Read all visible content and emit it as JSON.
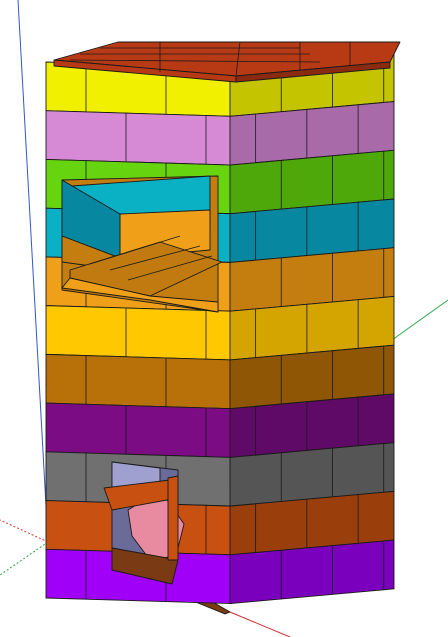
{
  "viewport": {
    "background": "#ffffff"
  },
  "axes": {
    "red_axis_color": "#d43030",
    "green_axis_color": "#2fa84f",
    "blue_axis_color": "#3355cc"
  },
  "model": {
    "cap_color": "#b83a14",
    "courses_top_to_bottom": [
      {
        "name": "yellow",
        "front": "#f0f000",
        "side": "#c4c400"
      },
      {
        "name": "lavender",
        "front": "#d68ad6",
        "side": "#a86aa8"
      },
      {
        "name": "lime",
        "front": "#66d40e",
        "side": "#4fa80a"
      },
      {
        "name": "teal",
        "front": "#0ab0c4",
        "side": "#0888a0"
      },
      {
        "name": "orange",
        "front": "#f0a018",
        "side": "#c47e10"
      },
      {
        "name": "gold",
        "front": "#ffc800",
        "side": "#d4a400"
      },
      {
        "name": "brown",
        "front": "#b87008",
        "side": "#8f5606"
      },
      {
        "name": "purple",
        "front": "#7c0c84",
        "side": "#5e0a66"
      },
      {
        "name": "gray",
        "front": "#707070",
        "side": "#555555"
      },
      {
        "name": "rust",
        "front": "#c85010",
        "side": "#9a3e0c"
      },
      {
        "name": "violet",
        "front": "#a000f8",
        "side": "#7a00be"
      }
    ],
    "firebox_color": "#e88aa0",
    "hearth_color": "#c07a10",
    "base_plate_color": "#7a3a14"
  }
}
